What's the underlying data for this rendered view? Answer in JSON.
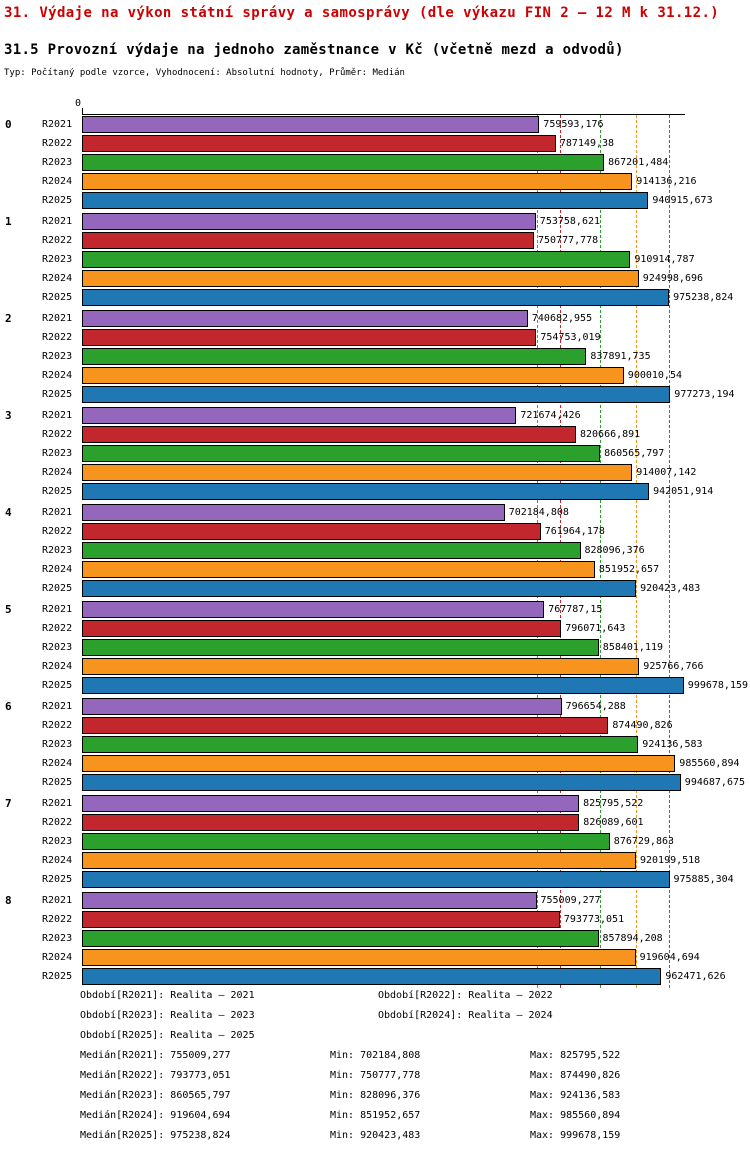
{
  "header": {
    "title": "31. Výdaje na výkon státní správy a samosprávy (dle výkazu FIN 2 – 12 M k 31.12.)",
    "subtitle": "31.5 Provozní výdaje na jednoho zaměstnance v Kč (včetně mezd a odvodů)",
    "meta": "Typ: Počítaný podle vzorce, Vyhodnocení: Absolutní hodnoty, Průměr: Medián"
  },
  "chart_data": {
    "type": "bar",
    "orientation": "horizontal",
    "title": "31.5 Provozní výdaje na jednoho zaměstnance v Kč (včetně mezd a odvodů)",
    "axis": {
      "origin_label": "0",
      "xmax": 1000000,
      "grid": "median-lines"
    },
    "groups": [
      "0",
      "1",
      "2",
      "3",
      "4",
      "5",
      "6",
      "7",
      "8"
    ],
    "series": [
      {
        "name": "R2021",
        "color": "#9467bd",
        "median": 755009.277,
        "values": [
          759593.176,
          753758.621,
          740682.955,
          721674.426,
          702184.808,
          767787.15,
          796654.288,
          825795.522,
          755009.277
        ],
        "labels": [
          "759593,176",
          "753758,621",
          "740682,955",
          "721674,426",
          "702184,808",
          "767787,15",
          "796654,288",
          "825795,522",
          "755009,277"
        ]
      },
      {
        "name": "R2022",
        "color": "#c1272d",
        "median": 793773.051,
        "values": [
          787149.38,
          750777.778,
          754753.019,
          820666.891,
          761964.178,
          796071.643,
          874490.826,
          826089.601,
          793773.051
        ],
        "labels": [
          "787149,38",
          "750777,778",
          "754753,019",
          "820666,891",
          "761964,178",
          "796071,643",
          "874490,826",
          "826089,601",
          "793773,051"
        ]
      },
      {
        "name": "R2023",
        "color": "#2ca02c",
        "median": 860565.797,
        "values": [
          867201.484,
          910914.787,
          837891.735,
          860565.797,
          828096.376,
          858401.119,
          924136.583,
          876729.863,
          857894.208
        ],
        "labels": [
          "867201,484",
          "910914,787",
          "837891,735",
          "860565,797",
          "828096,376",
          "858401,119",
          "924136,583",
          "876729,863",
          "857894,208"
        ]
      },
      {
        "name": "R2024",
        "color": "#f7941e",
        "median": 919604.694,
        "values": [
          914136.216,
          924998.696,
          900010.54,
          914007.142,
          851952.657,
          925766.766,
          985560.894,
          920199.518,
          919604.694
        ],
        "labels": [
          "914136,216",
          "924998,696",
          "900010,54",
          "914007,142",
          "851952,657",
          "925766,766",
          "985560,894",
          "920199,518",
          "919604,694"
        ]
      },
      {
        "name": "R2025",
        "color": "#1f77b4",
        "median": 975238.824,
        "values": [
          940915.673,
          975238.824,
          977273.194,
          942051.914,
          920423.483,
          999678.159,
          994687.675,
          975885.304,
          962471.626
        ],
        "labels": [
          "940915,673",
          "975238,824",
          "977273,194",
          "942051,914",
          "920423,483",
          "999678,159",
          "994687,675",
          "975885,304",
          "962471,626"
        ]
      }
    ]
  },
  "footer": {
    "periods": [
      "Období[R2021]: Realita – 2021",
      "Období[R2022]: Realita – 2022",
      "Období[R2023]: Realita – 2023",
      "Období[R2024]: Realita – 2024",
      "Období[R2025]: Realita – 2025"
    ],
    "stats": [
      {
        "median": "Medián[R2021]: 755009,277",
        "min": "Min: 702184,808",
        "max": "Max: 825795,522"
      },
      {
        "median": "Medián[R2022]: 793773,051",
        "min": "Min: 750777,778",
        "max": "Max: 874490,826"
      },
      {
        "median": "Medián[R2023]: 860565,797",
        "min": "Min: 828096,376",
        "max": "Max: 924136,583"
      },
      {
        "median": "Medián[R2024]: 919604,694",
        "min": "Min: 851952,657",
        "max": "Max: 985560,894"
      },
      {
        "median": "Medián[R2025]: 975238,824",
        "min": "Min: 920423,483",
        "max": "Max: 999678,159"
      }
    ]
  }
}
